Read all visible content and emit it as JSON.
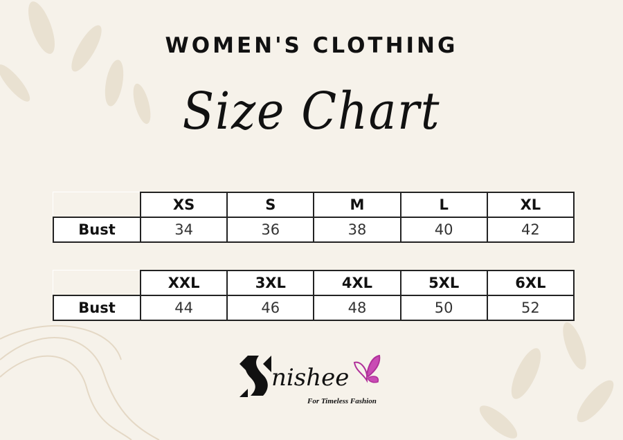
{
  "header": {
    "title": "WOMEN'S CLOTHING",
    "subtitle": "Size Chart"
  },
  "tables": [
    {
      "sizes": [
        "XS",
        "S",
        "M",
        "L",
        "XL"
      ],
      "row_label": "Bust",
      "values": [
        "34",
        "36",
        "38",
        "40",
        "42"
      ]
    },
    {
      "sizes": [
        "XXL",
        "3XL",
        "4XL",
        "5XL",
        "6XL"
      ],
      "row_label": "Bust",
      "values": [
        "44",
        "46",
        "48",
        "50",
        "52"
      ]
    }
  ],
  "brand": {
    "name": "nishee",
    "tagline": "For Timeless Fashion",
    "accent": "#b0309a"
  },
  "colors": {
    "background": "#f6f2ea",
    "leaf": "#e6dccb"
  }
}
